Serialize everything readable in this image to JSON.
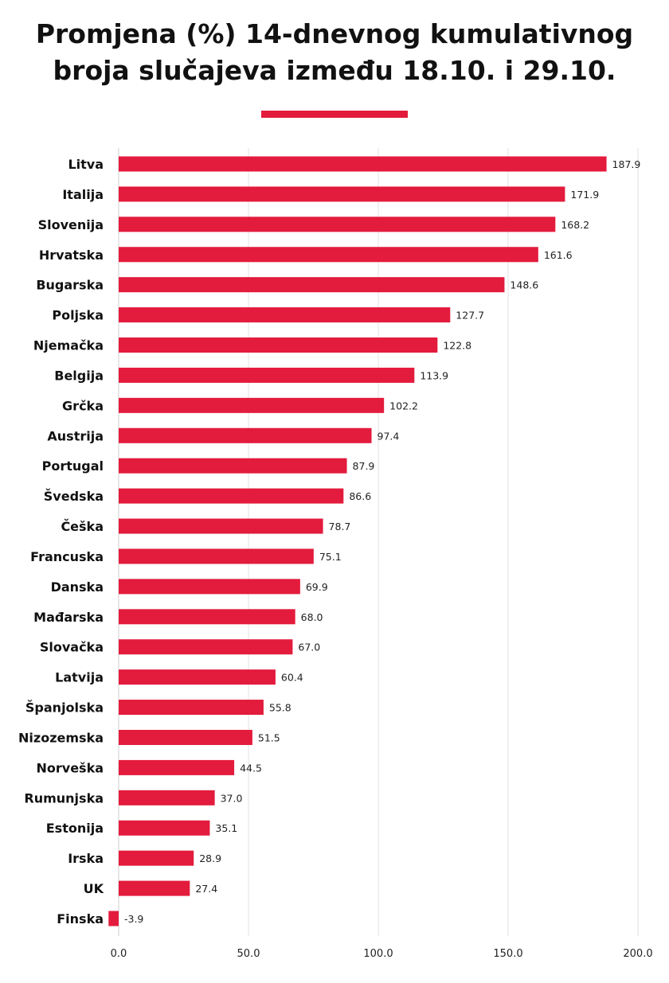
{
  "header": {
    "title_line1": "Promjena (%) 14-dnevnog kumulativnog",
    "title_line2": "broja slučajeva između 18.10. i 29.10."
  },
  "colors": {
    "bar": "#e31b3d",
    "accent_rule": "#e31b3d"
  },
  "chart_data": {
    "type": "bar",
    "orientation": "horizontal",
    "title": "Promjena (%) 14-dnevnog kumulativnog broja slučajeva između 18.10. i 29.10.",
    "categories": [
      "Litva",
      "Italija",
      "Slovenija",
      "Hrvatska",
      "Bugarska",
      "Poljska",
      "Njemačka",
      "Belgija",
      "Grčka",
      "Austrija",
      "Portugal",
      "Švedska",
      "Češka",
      "Francuska",
      "Danska",
      "Mađarska",
      "Slovačka",
      "Latvija",
      "Španjolska",
      "Nizozemska",
      "Norveška",
      "Rumunjska",
      "Estonija",
      "Irska",
      "UK",
      "Finska"
    ],
    "values": [
      187.9,
      171.9,
      168.2,
      161.6,
      148.6,
      127.7,
      122.8,
      113.9,
      102.2,
      97.4,
      87.9,
      86.6,
      78.7,
      75.1,
      69.9,
      68.0,
      67.0,
      60.4,
      55.8,
      51.5,
      44.5,
      37.0,
      35.1,
      28.9,
      27.4,
      -3.9
    ],
    "value_labels": [
      "187.9",
      "171.9",
      "168.2",
      "161.6",
      "148.6",
      "127.7",
      "122.8",
      "113.9",
      "102.2",
      "97.4",
      "87.9",
      "86.6",
      "78.7",
      "75.1",
      "69.9",
      "68.0",
      "67.0",
      "60.4",
      "55.8",
      "51.5",
      "44.5",
      "37.0",
      "35.1",
      "28.9",
      "27.4",
      "-3.9"
    ],
    "xlim": [
      0,
      200
    ],
    "x_ticks": [
      0,
      50,
      100,
      150,
      200
    ],
    "x_tick_labels": [
      "0.0",
      "50.0",
      "100.0",
      "150.0",
      "200.0"
    ],
    "grid": true,
    "legend": "none"
  }
}
